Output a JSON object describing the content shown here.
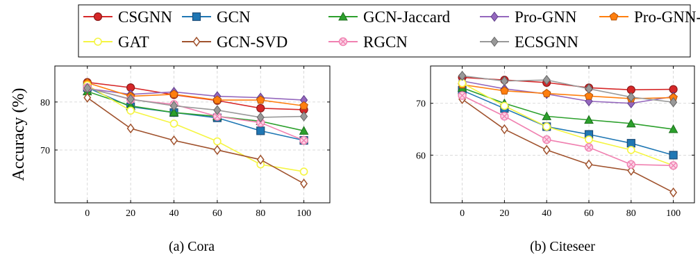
{
  "legend": {
    "entries": [
      {
        "name": "CSGNN",
        "color": "#d62728",
        "marker": "circle"
      },
      {
        "name": "GCN",
        "color": "#1f77b4",
        "marker": "square"
      },
      {
        "name": "GCN-Jaccard",
        "color": "#2ca02c",
        "marker": "triangle"
      },
      {
        "name": "Pro-GNN",
        "color": "#9467bd",
        "marker": "diamond"
      },
      {
        "name": "Pro-GNN-fs",
        "color": "#ff7f0e",
        "marker": "pentagon"
      },
      {
        "name": "GAT",
        "color": "#f5f542",
        "marker": "circle-open"
      },
      {
        "name": "GCN-SVD",
        "color": "#a0522d",
        "marker": "diamond-open"
      },
      {
        "name": "RGCN",
        "color": "#f080b0",
        "marker": "circle-x"
      },
      {
        "name": "ECSGNN",
        "color": "#999999",
        "marker": "diamond"
      }
    ]
  },
  "chart_data": [
    {
      "type": "line",
      "caption": "(a) Cora",
      "ylabel": "Accuracy (%)",
      "x": [
        0,
        20,
        40,
        60,
        80,
        100
      ],
      "xticks": [
        "0",
        "20",
        "40",
        "60",
        "80",
        "100"
      ],
      "xlim": [
        -15,
        112
      ],
      "yticks": [
        "70",
        "80"
      ],
      "ytick_values": [
        70,
        80
      ],
      "ylim": [
        59,
        87.5
      ],
      "grid": true,
      "series": [
        {
          "name": "CSGNN",
          "values": [
            84.1,
            83.0,
            81.5,
            80.3,
            78.7,
            78.4
          ]
        },
        {
          "name": "GCN",
          "values": [
            83.0,
            79.0,
            77.8,
            76.7,
            74.0,
            72.0
          ]
        },
        {
          "name": "GCN-Jaccard",
          "values": [
            82.2,
            79.2,
            77.8,
            77.0,
            76.0,
            74.0
          ]
        },
        {
          "name": "Pro-GNN",
          "values": [
            82.8,
            81.6,
            82.1,
            81.2,
            80.9,
            80.4
          ]
        },
        {
          "name": "Pro-GNN-fs",
          "values": [
            84.0,
            81.2,
            81.6,
            80.4,
            80.4,
            79.2
          ]
        },
        {
          "name": "GAT",
          "values": [
            83.5,
            78.2,
            75.5,
            71.8,
            67.0,
            65.5
          ]
        },
        {
          "name": "GCN-SVD",
          "values": [
            80.9,
            74.5,
            72.0,
            70.0,
            68.0,
            63.0
          ]
        },
        {
          "name": "RGCN",
          "values": [
            83.0,
            80.5,
            79.5,
            77.0,
            75.7,
            72.0
          ]
        },
        {
          "name": "ECSGNN",
          "values": [
            82.9,
            80.6,
            79.2,
            78.3,
            76.8,
            77.0
          ]
        }
      ]
    },
    {
      "type": "line",
      "caption": "(b) Citeseer",
      "ylabel": "",
      "x": [
        0,
        20,
        40,
        60,
        80,
        100
      ],
      "xticks": [
        "0",
        "20",
        "40",
        "60",
        "80",
        "100"
      ],
      "xlim": [
        -15,
        110
      ],
      "yticks": [
        "60",
        "70"
      ],
      "ytick_values": [
        60,
        70
      ],
      "ylim": [
        50.8,
        77.2
      ],
      "grid": true,
      "series": [
        {
          "name": "CSGNN",
          "values": [
            75.0,
            74.5,
            74.0,
            73.0,
            72.6,
            72.7
          ]
        },
        {
          "name": "GCN",
          "values": [
            72.5,
            69.0,
            65.5,
            64.0,
            62.3,
            60.0
          ]
        },
        {
          "name": "GCN-Jaccard",
          "values": [
            73.0,
            70.0,
            67.5,
            66.8,
            66.1,
            65.0
          ]
        },
        {
          "name": "Pro-GNN",
          "values": [
            74.3,
            72.8,
            71.8,
            70.4,
            70.0,
            71.3
          ]
        },
        {
          "name": "Pro-GNN-fs",
          "values": [
            73.6,
            72.4,
            71.9,
            71.4,
            70.9,
            71.1
          ]
        },
        {
          "name": "GAT",
          "values": [
            73.9,
            69.5,
            65.5,
            63.0,
            61.0,
            58.0
          ]
        },
        {
          "name": "GCN-SVD",
          "values": [
            70.8,
            65.0,
            61.0,
            58.2,
            57.0,
            52.8
          ]
        },
        {
          "name": "RGCN",
          "values": [
            71.5,
            67.5,
            63.0,
            61.5,
            58.2,
            58.0
          ]
        },
        {
          "name": "ECSGNN",
          "values": [
            75.3,
            74.3,
            74.5,
            72.8,
            71.2,
            70.2
          ]
        }
      ]
    }
  ]
}
